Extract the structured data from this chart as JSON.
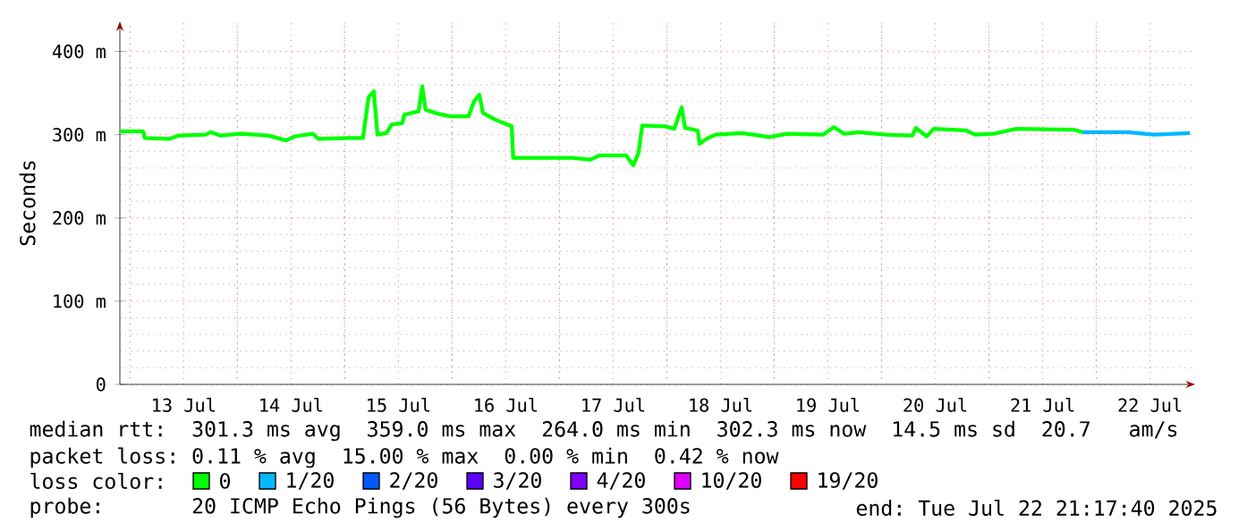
{
  "chart_data": {
    "type": "line",
    "ylabel": "Seconds",
    "legend_title": "loss color:",
    "legend": "bottom",
    "grid": true,
    "xlim": [
      "2025-07-12T21:45",
      "2025-07-22T22:05"
    ],
    "ylim": [
      0,
      436
    ],
    "xticks": [
      {
        "value": "2025-07-13T12:00",
        "label": "13 Jul"
      },
      {
        "value": "2025-07-14T12:00",
        "label": "14 Jul"
      },
      {
        "value": "2025-07-15T12:00",
        "label": "15 Jul"
      },
      {
        "value": "2025-07-16T12:00",
        "label": "16 Jul"
      },
      {
        "value": "2025-07-17T12:00",
        "label": "17 Jul"
      },
      {
        "value": "2025-07-18T12:00",
        "label": "18 Jul"
      },
      {
        "value": "2025-07-19T12:00",
        "label": "19 Jul"
      },
      {
        "value": "2025-07-20T12:00",
        "label": "20 Jul"
      },
      {
        "value": "2025-07-21T12:00",
        "label": "21 Jul"
      },
      {
        "value": "2025-07-22T12:00",
        "label": "22 Jul"
      },
      {
        "value": "2025-07-13T00:00",
        "label": null
      },
      {
        "value": "2025-07-14T00:00",
        "label": null
      },
      {
        "value": "2025-07-15T00:00",
        "label": null
      },
      {
        "value": "2025-07-16T00:00",
        "label": null
      },
      {
        "value": "2025-07-17T00:00",
        "label": null
      },
      {
        "value": "2025-07-18T00:00",
        "label": null
      },
      {
        "value": "2025-07-19T00:00",
        "label": null
      },
      {
        "value": "2025-07-20T00:00",
        "label": null
      },
      {
        "value": "2025-07-21T00:00",
        "label": null
      },
      {
        "value": "2025-07-22T00:00",
        "label": null
      }
    ],
    "yticks": [
      {
        "value": 0,
        "label": "0"
      },
      {
        "value": 100,
        "label": "100 m"
      },
      {
        "value": 200,
        "label": "200 m"
      },
      {
        "value": 300,
        "label": "300 m"
      },
      {
        "value": 400,
        "label": "400 m"
      }
    ],
    "series": [
      {
        "name": "0",
        "color": "#00ff00",
        "x": [
          "2025-07-12T21:45",
          "2025-07-13T02:55",
          "2025-07-13T03:20",
          "2025-07-13T08:55",
          "2025-07-13T10:55",
          "2025-07-13T16:55",
          "2025-07-13T18:05",
          "2025-07-13T20:05",
          "2025-07-14T00:55",
          "2025-07-14T06:55",
          "2025-07-14T10:55",
          "2025-07-14T12:55",
          "2025-07-14T16:55",
          "2025-07-14T18:05",
          "2025-07-15T00:55",
          "2025-07-15T04:05",
          "2025-07-15T05:20",
          "2025-07-15T06:30",
          "2025-07-15T07:20",
          "2025-07-15T09:20",
          "2025-07-15T10:30",
          "2025-07-15T12:55",
          "2025-07-15T13:20",
          "2025-07-15T16:30",
          "2025-07-15T17:20",
          "2025-07-15T18:05",
          "2025-07-15T20:55",
          "2025-07-15T23:40",
          "2025-07-16T03:40",
          "2025-07-16T04:55",
          "2025-07-16T06:05",
          "2025-07-16T06:55",
          "2025-07-16T09:40",
          "2025-07-16T13:20",
          "2025-07-16T13:40",
          "2025-07-17T02:55",
          "2025-07-17T06:55",
          "2025-07-17T08:55",
          "2025-07-17T14:55",
          "2025-07-17T16:30",
          "2025-07-17T17:40",
          "2025-07-17T18:30",
          "2025-07-17T23:40",
          "2025-07-18T01:40",
          "2025-07-18T02:30",
          "2025-07-18T03:20",
          "2025-07-18T04:05",
          "2025-07-18T06:55",
          "2025-07-18T07:20",
          "2025-07-18T08:55",
          "2025-07-18T10:55",
          "2025-07-18T16:55",
          "2025-07-18T22:55",
          "2025-07-19T02:55",
          "2025-07-19T10:55",
          "2025-07-19T13:20",
          "2025-07-19T15:40",
          "2025-07-19T18:55",
          "2025-07-20T00:55",
          "2025-07-20T06:55",
          "2025-07-20T07:40",
          "2025-07-20T10:05",
          "2025-07-20T11:40",
          "2025-07-20T18:55",
          "2025-07-20T20:55",
          "2025-07-21T00:55",
          "2025-07-21T06:05",
          "2025-07-21T18:55",
          "2025-07-21T20:55"
        ],
        "values": [
          304,
          304,
          296,
          295,
          299,
          300,
          303,
          299,
          301,
          299,
          293,
          298,
          301,
          295,
          296,
          296,
          345,
          352,
          300,
          302,
          312,
          314,
          324,
          328,
          358,
          330,
          325,
          322,
          322,
          340,
          348,
          326,
          318,
          310,
          272,
          272,
          270,
          275,
          275,
          263,
          278,
          311,
          310,
          307,
          320,
          333,
          308,
          305,
          289,
          295,
          300,
          302,
          297,
          301,
          300,
          309,
          301,
          303,
          300,
          299,
          308,
          298,
          307,
          305,
          300,
          301,
          307,
          306,
          303
        ]
      },
      {
        "name": "1/20",
        "color": "#00b8ff",
        "x": [
          "2025-07-21T20:55",
          "2025-07-22T06:55",
          "2025-07-22T12:55",
          "2025-07-22T20:55"
        ],
        "values": [
          303,
          303,
          300,
          302
        ]
      },
      {
        "name": "2/20",
        "color": "#0059ff"
      },
      {
        "name": "3/20",
        "color": "#5e00ff"
      },
      {
        "name": "4/20",
        "color": "#7e00ff"
      },
      {
        "name": "10/20",
        "color": "#dd00ff"
      },
      {
        "name": "19/20",
        "color": "#ff0000"
      }
    ],
    "annotations": [
      "median rtt:  301.3 ms avg  359.0 ms max  264.0 ms min  302.3 ms now  14.5 ms sd  20.7   am/s",
      "packet loss: 0.11 % avg  15.00 % max  0.00 % min  0.42 % now",
      "probe:       20 ICMP Echo Pings (56 Bytes) every 300s",
      "end: Tue Jul 22 21:17:40 2025"
    ]
  }
}
